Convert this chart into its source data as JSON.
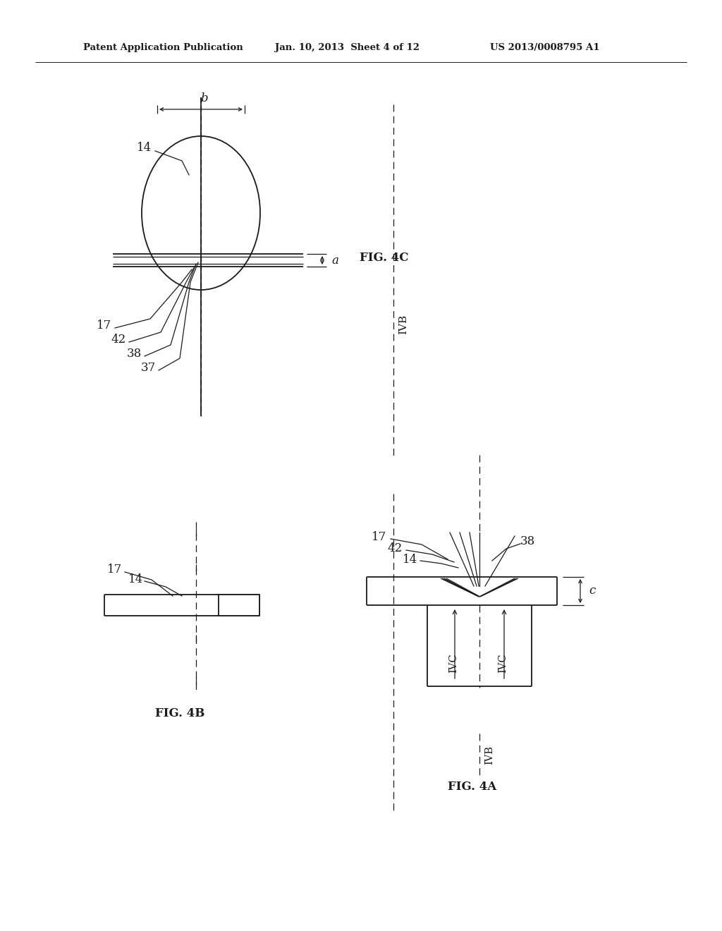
{
  "bg_color": "#ffffff",
  "line_color": "#1a1a1a",
  "header_left": "Patent Application Publication",
  "header_center": "Jan. 10, 2013  Sheet 4 of 12",
  "header_right": "US 2013/0008795 A1",
  "fig4c_label": "FIG. 4C",
  "fig4b_label": "FIG. 4B",
  "fig4a_label": "FIG. 4A",
  "labels": {
    "14_top": "14",
    "17_4c": "17",
    "42_4c": "42",
    "38_4c": "38",
    "37_4c": "37",
    "b_dim": "b",
    "a_dim": "a",
    "17_4b": "17",
    "14_4b": "14",
    "17_4a": "17",
    "42_4a": "42",
    "14_4a": "14",
    "38_4a": "38",
    "c_dim": "c",
    "IVB_vert": "IVB",
    "IVC_left": "IVC",
    "IVB_bottom": "IVB",
    "IVC_right": "IVC"
  }
}
